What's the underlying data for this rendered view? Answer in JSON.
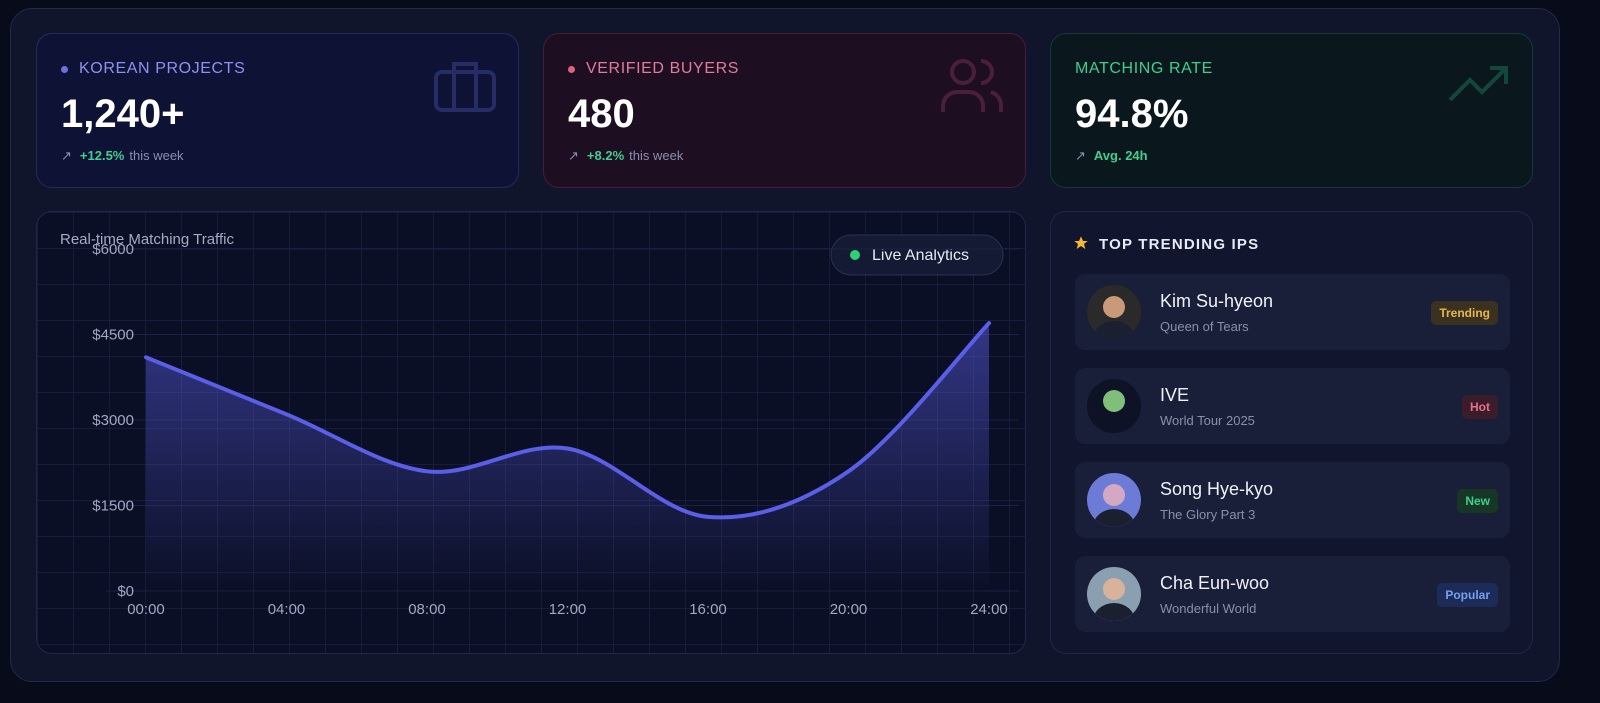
{
  "stats": [
    {
      "label": "KOREAN PROJECTS",
      "value": "1,240+",
      "change": "+12.5%",
      "note": "this week"
    },
    {
      "label": "VERIFIED BUYERS",
      "value": "480",
      "change": "+8.2%",
      "note": "this week"
    },
    {
      "label": "MATCHING RATE",
      "value": "94.8%",
      "change": "Avg. 24h"
    }
  ],
  "chart_data": {
    "type": "line",
    "title": "Real-time Matching Traffic",
    "badge": "Live Analytics",
    "categories": [
      "00:00",
      "04:00",
      "08:00",
      "12:00",
      "16:00",
      "20:00",
      "24:00"
    ],
    "series": [
      {
        "color": "#5b5ee6",
        "values": [
          4100,
          3100,
          2100,
          2500,
          1300,
          2100,
          4700
        ]
      }
    ],
    "ylim": [
      0,
      6000
    ],
    "yticks": [
      {
        "value": 0,
        "label": "$0"
      },
      {
        "value": 1500,
        "label": "$1500"
      },
      {
        "value": 3000,
        "label": "$3000"
      },
      {
        "value": 4500,
        "label": "$4500"
      },
      {
        "value": 6000,
        "label": "$6000"
      }
    ],
    "grid": true
  },
  "trending": {
    "title": "TOP TRENDING IPS",
    "items": [
      {
        "name": "Kim Su-hyeon",
        "subtitle": "Queen of Tears",
        "badge": "Trending"
      },
      {
        "name": "IVE",
        "subtitle": "World Tour 2025",
        "badge": "Hot"
      },
      {
        "name": "Song Hye-kyo",
        "subtitle": "The Glory Part 3",
        "badge": "New"
      },
      {
        "name": "Cha Eun-woo",
        "subtitle": "Wonderful World",
        "badge": "Popular"
      }
    ]
  }
}
